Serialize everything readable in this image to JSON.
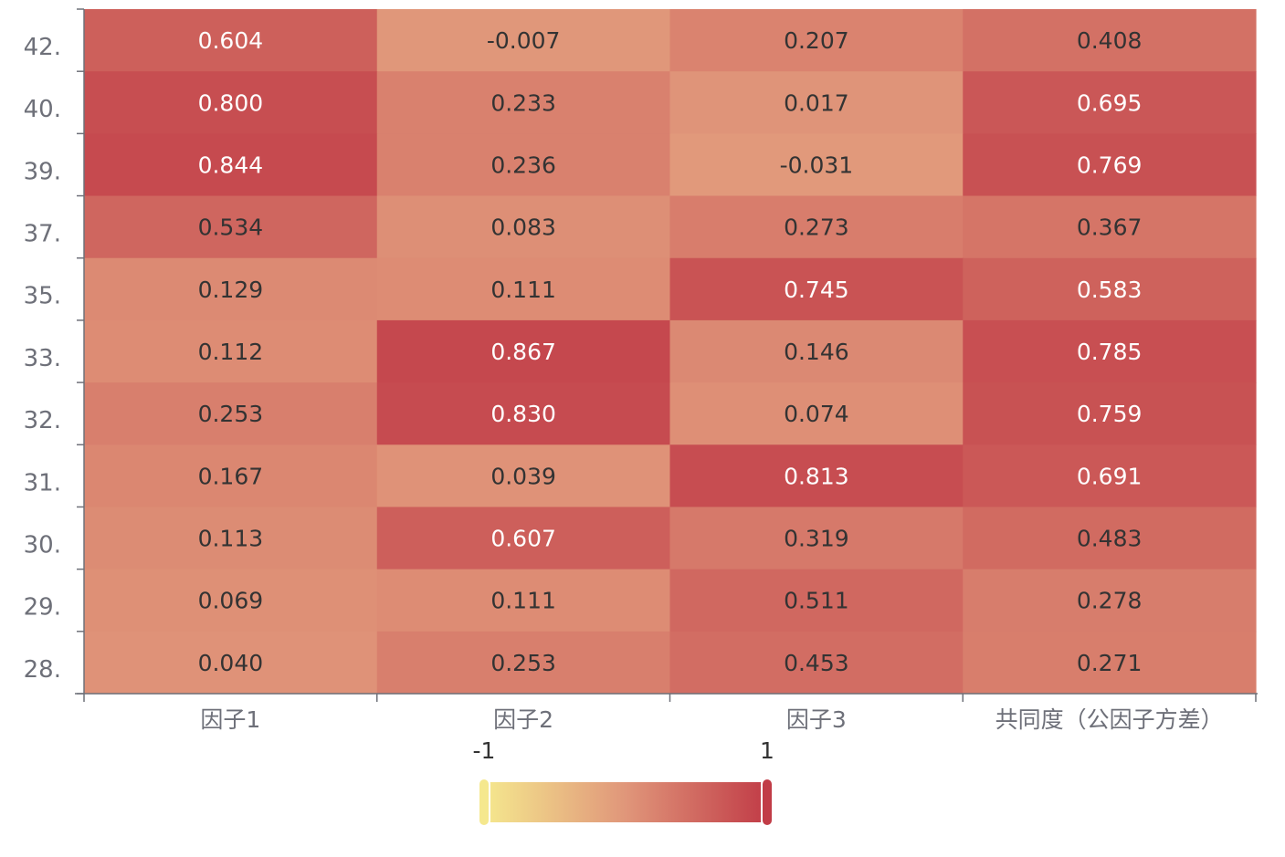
{
  "chart_data": {
    "type": "heatmap",
    "title": "",
    "xlabel": "",
    "ylabel": "",
    "x_categories": [
      "因子1",
      "因子2",
      "因子3",
      "共同度（公因子方差）"
    ],
    "y_categories": [
      "42.",
      "40.",
      "39.",
      "37.",
      "35.",
      "33.",
      "32.",
      "31.",
      "30.",
      "29.",
      "28."
    ],
    "values": [
      [
        0.604,
        -0.007,
        0.207,
        0.408
      ],
      [
        0.8,
        0.233,
        0.017,
        0.695
      ],
      [
        0.844,
        0.236,
        -0.031,
        0.769
      ],
      [
        0.534,
        0.083,
        0.273,
        0.367
      ],
      [
        0.129,
        0.111,
        0.745,
        0.583
      ],
      [
        0.112,
        0.867,
        0.146,
        0.785
      ],
      [
        0.253,
        0.83,
        0.074,
        0.759
      ],
      [
        0.167,
        0.039,
        0.813,
        0.691
      ],
      [
        0.113,
        0.607,
        0.319,
        0.483
      ],
      [
        0.069,
        0.111,
        0.511,
        0.278
      ],
      [
        0.04,
        0.253,
        0.453,
        0.271
      ]
    ],
    "value_labels": [
      [
        "0.604",
        "-0.007",
        "0.207",
        "0.408"
      ],
      [
        "0.800",
        "0.233",
        "0.017",
        "0.695"
      ],
      [
        "0.844",
        "0.236",
        "-0.031",
        "0.769"
      ],
      [
        "0.534",
        "0.083",
        "0.273",
        "0.367"
      ],
      [
        "0.129",
        "0.111",
        "0.745",
        "0.583"
      ],
      [
        "0.112",
        "0.867",
        "0.146",
        "0.785"
      ],
      [
        "0.253",
        "0.830",
        "0.074",
        "0.759"
      ],
      [
        "0.167",
        "0.039",
        "0.813",
        "0.691"
      ],
      [
        "0.113",
        "0.607",
        "0.319",
        "0.483"
      ],
      [
        "0.069",
        "0.111",
        "0.511",
        "0.278"
      ],
      [
        "0.040",
        "0.253",
        "0.453",
        "0.271"
      ]
    ],
    "visual_map": {
      "min": -1,
      "max": 1,
      "min_label": "-1",
      "max_label": "1",
      "colors": [
        "#f5e88e",
        "#e0967a",
        "#c13c47"
      ]
    },
    "colors": {
      "axis": "#6e7079",
      "label": "#6e7079",
      "cell_text_light": "#ffffff",
      "cell_text_dark": "#333333"
    },
    "grid": false
  }
}
